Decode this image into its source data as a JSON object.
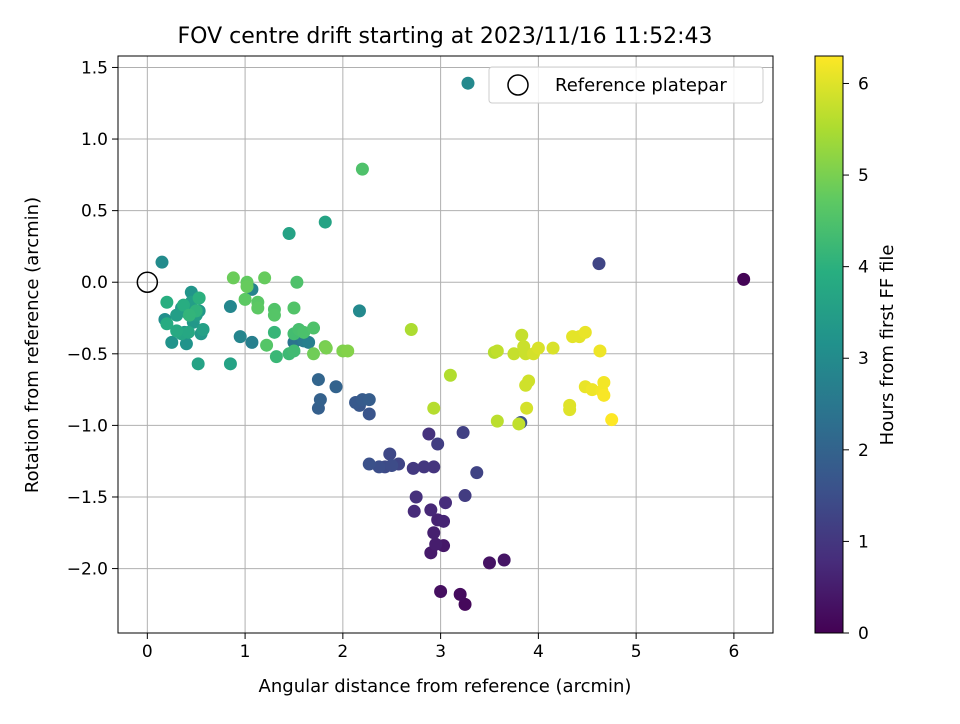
{
  "chart_data": {
    "type": "scatter",
    "title": "FOV centre drift starting at 2023/11/16 11:52:43",
    "xlabel": "Angular distance from reference (arcmin)",
    "ylabel": "Rotation from reference (arcmin)",
    "xlim": [
      -0.3,
      6.4
    ],
    "ylim": [
      -2.45,
      1.58
    ],
    "xticks": [
      "0",
      "1",
      "2",
      "3",
      "4",
      "5",
      "6"
    ],
    "yticks": [
      "1.5",
      "1.0",
      "0.5",
      "0.0",
      "−0.5",
      "−1.0",
      "−1.5",
      "−2.0"
    ],
    "grid": true,
    "colormap": "viridis",
    "colorbar": {
      "label": "Hours from first FF file",
      "range": [
        0,
        6.3
      ],
      "ticks": [
        "0",
        "1",
        "2",
        "3",
        "4",
        "5",
        "6"
      ]
    },
    "legend": {
      "position": "top-right",
      "entry": "Reference platepar"
    },
    "reference_point": {
      "x": 0,
      "y": 0
    },
    "points": [
      {
        "x": 6.1,
        "y": 0.02,
        "t": 0.05
      },
      {
        "x": 3.25,
        "y": -2.25,
        "t": 0.15
      },
      {
        "x": 3.2,
        "y": -2.18,
        "t": 0.2
      },
      {
        "x": 3.0,
        "y": -2.16,
        "t": 0.25
      },
      {
        "x": 3.5,
        "y": -1.96,
        "t": 0.3
      },
      {
        "x": 3.65,
        "y": -1.94,
        "t": 0.35
      },
      {
        "x": 3.03,
        "y": -1.84,
        "t": 0.4
      },
      {
        "x": 2.9,
        "y": -1.89,
        "t": 0.45
      },
      {
        "x": 2.95,
        "y": -1.83,
        "t": 0.5
      },
      {
        "x": 2.93,
        "y": -1.75,
        "t": 0.55
      },
      {
        "x": 2.97,
        "y": -1.66,
        "t": 0.6
      },
      {
        "x": 3.03,
        "y": -1.67,
        "t": 0.65
      },
      {
        "x": 2.9,
        "y": -1.59,
        "t": 0.7
      },
      {
        "x": 2.73,
        "y": -1.6,
        "t": 0.75
      },
      {
        "x": 3.05,
        "y": -1.54,
        "t": 0.8
      },
      {
        "x": 2.75,
        "y": -1.5,
        "t": 0.85
      },
      {
        "x": 2.88,
        "y": -1.06,
        "t": 0.9
      },
      {
        "x": 2.93,
        "y": -1.29,
        "t": 0.95
      },
      {
        "x": 2.83,
        "y": -1.29,
        "t": 1.0
      },
      {
        "x": 2.72,
        "y": -1.3,
        "t": 1.05
      },
      {
        "x": 3.25,
        "y": -1.49,
        "t": 1.1
      },
      {
        "x": 2.97,
        "y": -1.13,
        "t": 1.15
      },
      {
        "x": 3.23,
        "y": -1.05,
        "t": 1.2
      },
      {
        "x": 3.37,
        "y": -1.33,
        "t": 1.25
      },
      {
        "x": 2.57,
        "y": -1.27,
        "t": 1.3
      },
      {
        "x": 2.48,
        "y": -1.2,
        "t": 1.35
      },
      {
        "x": 2.43,
        "y": -1.29,
        "t": 1.4
      },
      {
        "x": 2.5,
        "y": -1.28,
        "t": 1.45
      },
      {
        "x": 2.37,
        "y": -1.29,
        "t": 1.5
      },
      {
        "x": 2.27,
        "y": -1.27,
        "t": 1.55
      },
      {
        "x": 3.82,
        "y": -0.98,
        "t": 1.6
      },
      {
        "x": 4.62,
        "y": 0.13,
        "t": 1.3
      },
      {
        "x": 2.27,
        "y": -0.92,
        "t": 1.65
      },
      {
        "x": 2.17,
        "y": -0.86,
        "t": 1.7
      },
      {
        "x": 2.13,
        "y": -0.84,
        "t": 1.75
      },
      {
        "x": 2.2,
        "y": -0.82,
        "t": 1.8
      },
      {
        "x": 2.27,
        "y": -0.82,
        "t": 1.85
      },
      {
        "x": 1.75,
        "y": -0.88,
        "t": 1.9
      },
      {
        "x": 1.77,
        "y": -0.82,
        "t": 1.95
      },
      {
        "x": 1.93,
        "y": -0.73,
        "t": 2.0
      },
      {
        "x": 1.75,
        "y": -0.68,
        "t": 2.05
      },
      {
        "x": 1.5,
        "y": -0.42,
        "t": 2.4
      },
      {
        "x": 1.6,
        "y": -0.41,
        "t": 2.6
      },
      {
        "x": 1.65,
        "y": -0.42,
        "t": 2.7
      },
      {
        "x": 1.07,
        "y": -0.42,
        "t": 2.7
      },
      {
        "x": 1.07,
        "y": -0.05,
        "t": 2.8
      },
      {
        "x": 0.95,
        "y": -0.38,
        "t": 2.85
      },
      {
        "x": 0.85,
        "y": -0.17,
        "t": 2.9
      },
      {
        "x": 2.17,
        "y": -0.2,
        "t": 2.95
      },
      {
        "x": 3.28,
        "y": 1.39,
        "t": 2.95
      },
      {
        "x": 0.15,
        "y": 0.14,
        "t": 3.0
      },
      {
        "x": 0.18,
        "y": -0.26,
        "t": 3.1
      },
      {
        "x": 0.25,
        "y": -0.42,
        "t": 3.2
      },
      {
        "x": 0.4,
        "y": -0.43,
        "t": 3.2
      },
      {
        "x": 0.45,
        "y": -0.07,
        "t": 3.25
      },
      {
        "x": 0.35,
        "y": -0.18,
        "t": 3.3
      },
      {
        "x": 0.38,
        "y": -0.35,
        "t": 3.3
      },
      {
        "x": 0.53,
        "y": -0.2,
        "t": 3.3
      },
      {
        "x": 0.55,
        "y": -0.36,
        "t": 3.35
      },
      {
        "x": 0.47,
        "y": -0.28,
        "t": 3.35
      },
      {
        "x": 0.42,
        "y": -0.22,
        "t": 3.4
      },
      {
        "x": 0.5,
        "y": -0.23,
        "t": 3.45
      },
      {
        "x": 0.3,
        "y": -0.23,
        "t": 3.5
      },
      {
        "x": 0.45,
        "y": -0.14,
        "t": 3.5
      },
      {
        "x": 0.57,
        "y": -0.33,
        "t": 3.55
      },
      {
        "x": 0.52,
        "y": -0.57,
        "t": 3.6
      },
      {
        "x": 0.85,
        "y": -0.57,
        "t": 3.6
      },
      {
        "x": 1.45,
        "y": 0.34,
        "t": 3.6
      },
      {
        "x": 1.82,
        "y": 0.42,
        "t": 3.65
      },
      {
        "x": 0.35,
        "y": -0.36,
        "t": 3.7
      },
      {
        "x": 0.42,
        "y": -0.35,
        "t": 3.75
      },
      {
        "x": 0.3,
        "y": -0.34,
        "t": 3.8
      },
      {
        "x": 0.2,
        "y": -0.29,
        "t": 3.85
      },
      {
        "x": 0.37,
        "y": -0.16,
        "t": 3.9
      },
      {
        "x": 0.2,
        "y": -0.14,
        "t": 3.95
      },
      {
        "x": 0.53,
        "y": -0.11,
        "t": 4.0
      },
      {
        "x": 0.5,
        "y": -0.2,
        "t": 4.05
      },
      {
        "x": 0.43,
        "y": -0.23,
        "t": 4.1
      },
      {
        "x": 1.3,
        "y": -0.35,
        "t": 4.15
      },
      {
        "x": 1.32,
        "y": -0.52,
        "t": 4.2
      },
      {
        "x": 1.45,
        "y": -0.5,
        "t": 4.25
      },
      {
        "x": 1.5,
        "y": -0.48,
        "t": 4.3
      },
      {
        "x": 1.5,
        "y": -0.36,
        "t": 4.35
      },
      {
        "x": 1.55,
        "y": -0.33,
        "t": 4.4
      },
      {
        "x": 1.6,
        "y": -0.35,
        "t": 4.45
      },
      {
        "x": 1.7,
        "y": -0.32,
        "t": 4.5
      },
      {
        "x": 1.53,
        "y": 0.0,
        "t": 4.5
      },
      {
        "x": 1.5,
        "y": -0.18,
        "t": 4.55
      },
      {
        "x": 1.3,
        "y": -0.19,
        "t": 4.55
      },
      {
        "x": 1.3,
        "y": -0.23,
        "t": 4.6
      },
      {
        "x": 1.22,
        "y": -0.44,
        "t": 4.6
      },
      {
        "x": 1.13,
        "y": -0.14,
        "t": 4.65
      },
      {
        "x": 1.13,
        "y": -0.18,
        "t": 4.7
      },
      {
        "x": 1.0,
        "y": -0.12,
        "t": 4.7
      },
      {
        "x": 1.02,
        "y": 0.0,
        "t": 4.75
      },
      {
        "x": 1.02,
        "y": -0.03,
        "t": 4.8
      },
      {
        "x": 1.2,
        "y": 0.03,
        "t": 4.8
      },
      {
        "x": 0.88,
        "y": 0.03,
        "t": 4.85
      },
      {
        "x": 1.7,
        "y": -0.5,
        "t": 4.9
      },
      {
        "x": 1.82,
        "y": -0.45,
        "t": 4.95
      },
      {
        "x": 1.83,
        "y": -0.46,
        "t": 5.0
      },
      {
        "x": 2.0,
        "y": -0.48,
        "t": 5.05
      },
      {
        "x": 2.05,
        "y": -0.48,
        "t": 5.1
      },
      {
        "x": 2.2,
        "y": 0.79,
        "t": 4.5
      },
      {
        "x": 2.7,
        "y": -0.33,
        "t": 5.5
      },
      {
        "x": 3.1,
        "y": -0.65,
        "t": 5.55
      },
      {
        "x": 2.93,
        "y": -0.88,
        "t": 5.6
      },
      {
        "x": 3.55,
        "y": -0.49,
        "t": 5.6
      },
      {
        "x": 3.58,
        "y": -0.97,
        "t": 5.65
      },
      {
        "x": 3.58,
        "y": -0.48,
        "t": 5.7
      },
      {
        "x": 3.8,
        "y": -0.99,
        "t": 5.7
      },
      {
        "x": 3.75,
        "y": -0.5,
        "t": 5.75
      },
      {
        "x": 3.83,
        "y": -0.37,
        "t": 5.75
      },
      {
        "x": 3.85,
        "y": -0.45,
        "t": 5.8
      },
      {
        "x": 3.87,
        "y": -0.5,
        "t": 5.8
      },
      {
        "x": 3.9,
        "y": -0.69,
        "t": 5.85
      },
      {
        "x": 3.87,
        "y": -0.72,
        "t": 5.85
      },
      {
        "x": 3.88,
        "y": -0.88,
        "t": 5.9
      },
      {
        "x": 3.95,
        "y": -0.5,
        "t": 5.9
      },
      {
        "x": 4.0,
        "y": -0.46,
        "t": 5.95
      },
      {
        "x": 4.15,
        "y": -0.46,
        "t": 5.95
      },
      {
        "x": 4.32,
        "y": -0.86,
        "t": 6.0
      },
      {
        "x": 4.32,
        "y": -0.89,
        "t": 6.0
      },
      {
        "x": 4.35,
        "y": -0.38,
        "t": 6.05
      },
      {
        "x": 4.42,
        "y": -0.38,
        "t": 6.05
      },
      {
        "x": 4.48,
        "y": -0.35,
        "t": 6.1
      },
      {
        "x": 4.48,
        "y": -0.73,
        "t": 6.1
      },
      {
        "x": 4.55,
        "y": -0.75,
        "t": 6.15
      },
      {
        "x": 4.63,
        "y": -0.48,
        "t": 6.15
      },
      {
        "x": 4.65,
        "y": -0.76,
        "t": 6.2
      },
      {
        "x": 4.67,
        "y": -0.7,
        "t": 6.2
      },
      {
        "x": 4.67,
        "y": -0.79,
        "t": 6.25
      },
      {
        "x": 4.75,
        "y": -0.96,
        "t": 6.3
      }
    ]
  }
}
